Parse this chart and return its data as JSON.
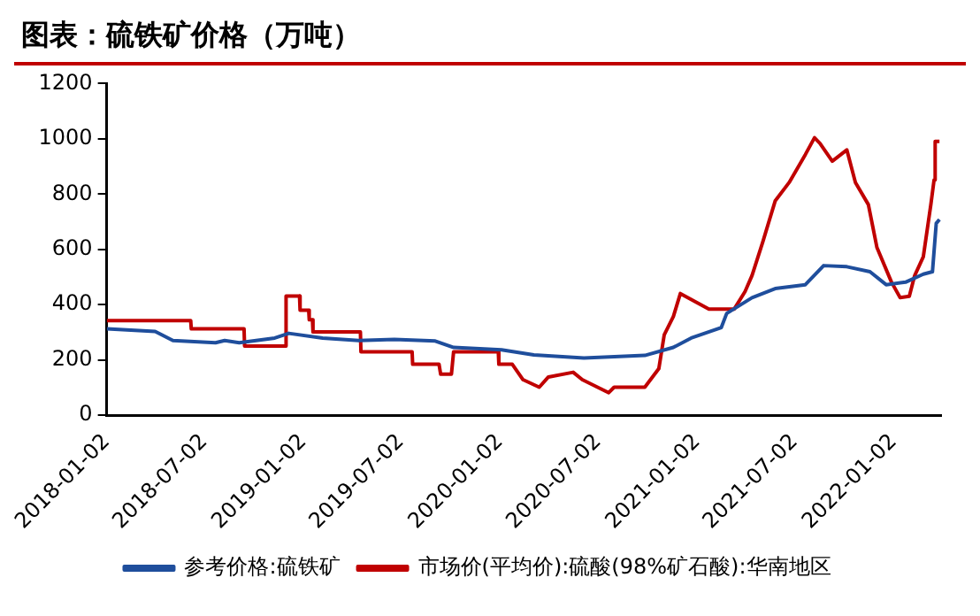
{
  "chart_data": {
    "type": "line",
    "title": "图表：硫铁矿价格（万吨）",
    "xlim": [
      "2018-01-02",
      "2022-03-31"
    ],
    "xticks": [
      "2018-01-02",
      "2018-07-02",
      "2019-01-02",
      "2019-07-02",
      "2020-01-02",
      "2020-07-02",
      "2021-01-02",
      "2021-07-02",
      "2022-01-02"
    ],
    "ylim": [
      0,
      1200
    ],
    "yticks": [
      0,
      200,
      400,
      600,
      800,
      1000,
      1200
    ],
    "grid": false,
    "legend": "bottom",
    "marker": "none",
    "line_style": "solid",
    "series": [
      {
        "name": "参考价格:硫铁矿",
        "color": "#1f4e9c",
        "x": [
          "2018-01-02",
          "2018-04-02",
          "2018-05-05",
          "2018-07-23",
          "2018-08-09",
          "2018-09-05",
          "2018-11-10",
          "2018-12-06",
          "2019-02-07",
          "2019-04-15",
          "2019-06-20",
          "2019-09-04",
          "2019-10-08",
          "2020-01-05",
          "2020-03-05",
          "2020-06-06",
          "2020-09-27",
          "2020-11-19",
          "2020-12-22",
          "2021-02-16",
          "2021-02-26",
          "2021-04-14",
          "2021-05-27",
          "2021-07-22",
          "2021-08-25",
          "2021-10-07",
          "2021-11-19",
          "2021-12-19",
          "2022-01-24",
          "2022-02-26",
          "2022-03-15",
          "2022-03-22",
          "2022-03-28"
        ],
        "values": [
          312,
          303,
          270,
          262,
          270,
          262,
          279,
          296,
          279,
          270,
          274,
          268,
          245,
          236,
          218,
          207,
          216,
          245,
          279,
          317,
          368,
          425,
          458,
          472,
          541,
          537,
          519,
          472,
          481,
          510,
          519,
          694,
          708
        ]
      },
      {
        "name": "市场价(平均价):硫酸(98%矿石酸):华南地区",
        "color": "#c00000",
        "x": [
          "2018-01-02",
          "2018-06-07",
          "2018-06-08",
          "2018-09-14",
          "2018-09-15",
          "2018-11-30",
          "2018-12-01",
          "2018-12-26",
          "2018-12-27",
          "2019-01-12",
          "2019-01-13",
          "2019-01-19",
          "2019-01-20",
          "2019-04-18",
          "2019-04-19",
          "2019-07-23",
          "2019-07-24",
          "2019-09-11",
          "2019-09-14",
          "2019-10-04",
          "2019-10-08",
          "2019-12-30",
          "2019-12-31",
          "2020-01-25",
          "2020-02-14",
          "2020-03-15",
          "2020-04-01",
          "2020-05-17",
          "2020-06-03",
          "2020-07-22",
          "2020-08-01",
          "2020-09-27",
          "2020-10-23",
          "2020-11-02",
          "2020-11-19",
          "2020-12-02",
          "2021-01-24",
          "2021-03-12",
          "2021-04-01",
          "2021-04-14",
          "2021-05-04",
          "2021-05-27",
          "2021-06-22",
          "2021-07-22",
          "2021-08-08",
          "2021-08-18",
          "2021-09-10",
          "2021-10-07",
          "2021-10-23",
          "2021-11-16",
          "2021-12-02",
          "2021-12-29",
          "2022-01-14",
          "2022-01-31",
          "2022-02-10",
          "2022-02-26",
          "2022-03-12",
          "2022-03-18",
          "2022-03-20",
          "2022-03-28"
        ],
        "values": [
          342,
          342,
          312,
          312,
          250,
          250,
          431,
          431,
          380,
          380,
          345,
          345,
          301,
          301,
          229,
          229,
          184,
          184,
          148,
          148,
          229,
          229,
          184,
          184,
          128,
          101,
          138,
          155,
          128,
          81,
          101,
          101,
          168,
          290,
          357,
          440,
          384,
          384,
          447,
          505,
          627,
          775,
          842,
          943,
          1004,
          984,
          919,
          960,
          842,
          762,
          606,
          481,
          425,
          430,
          505,
          573,
          762,
          851,
          991,
          991
        ]
      }
    ]
  }
}
